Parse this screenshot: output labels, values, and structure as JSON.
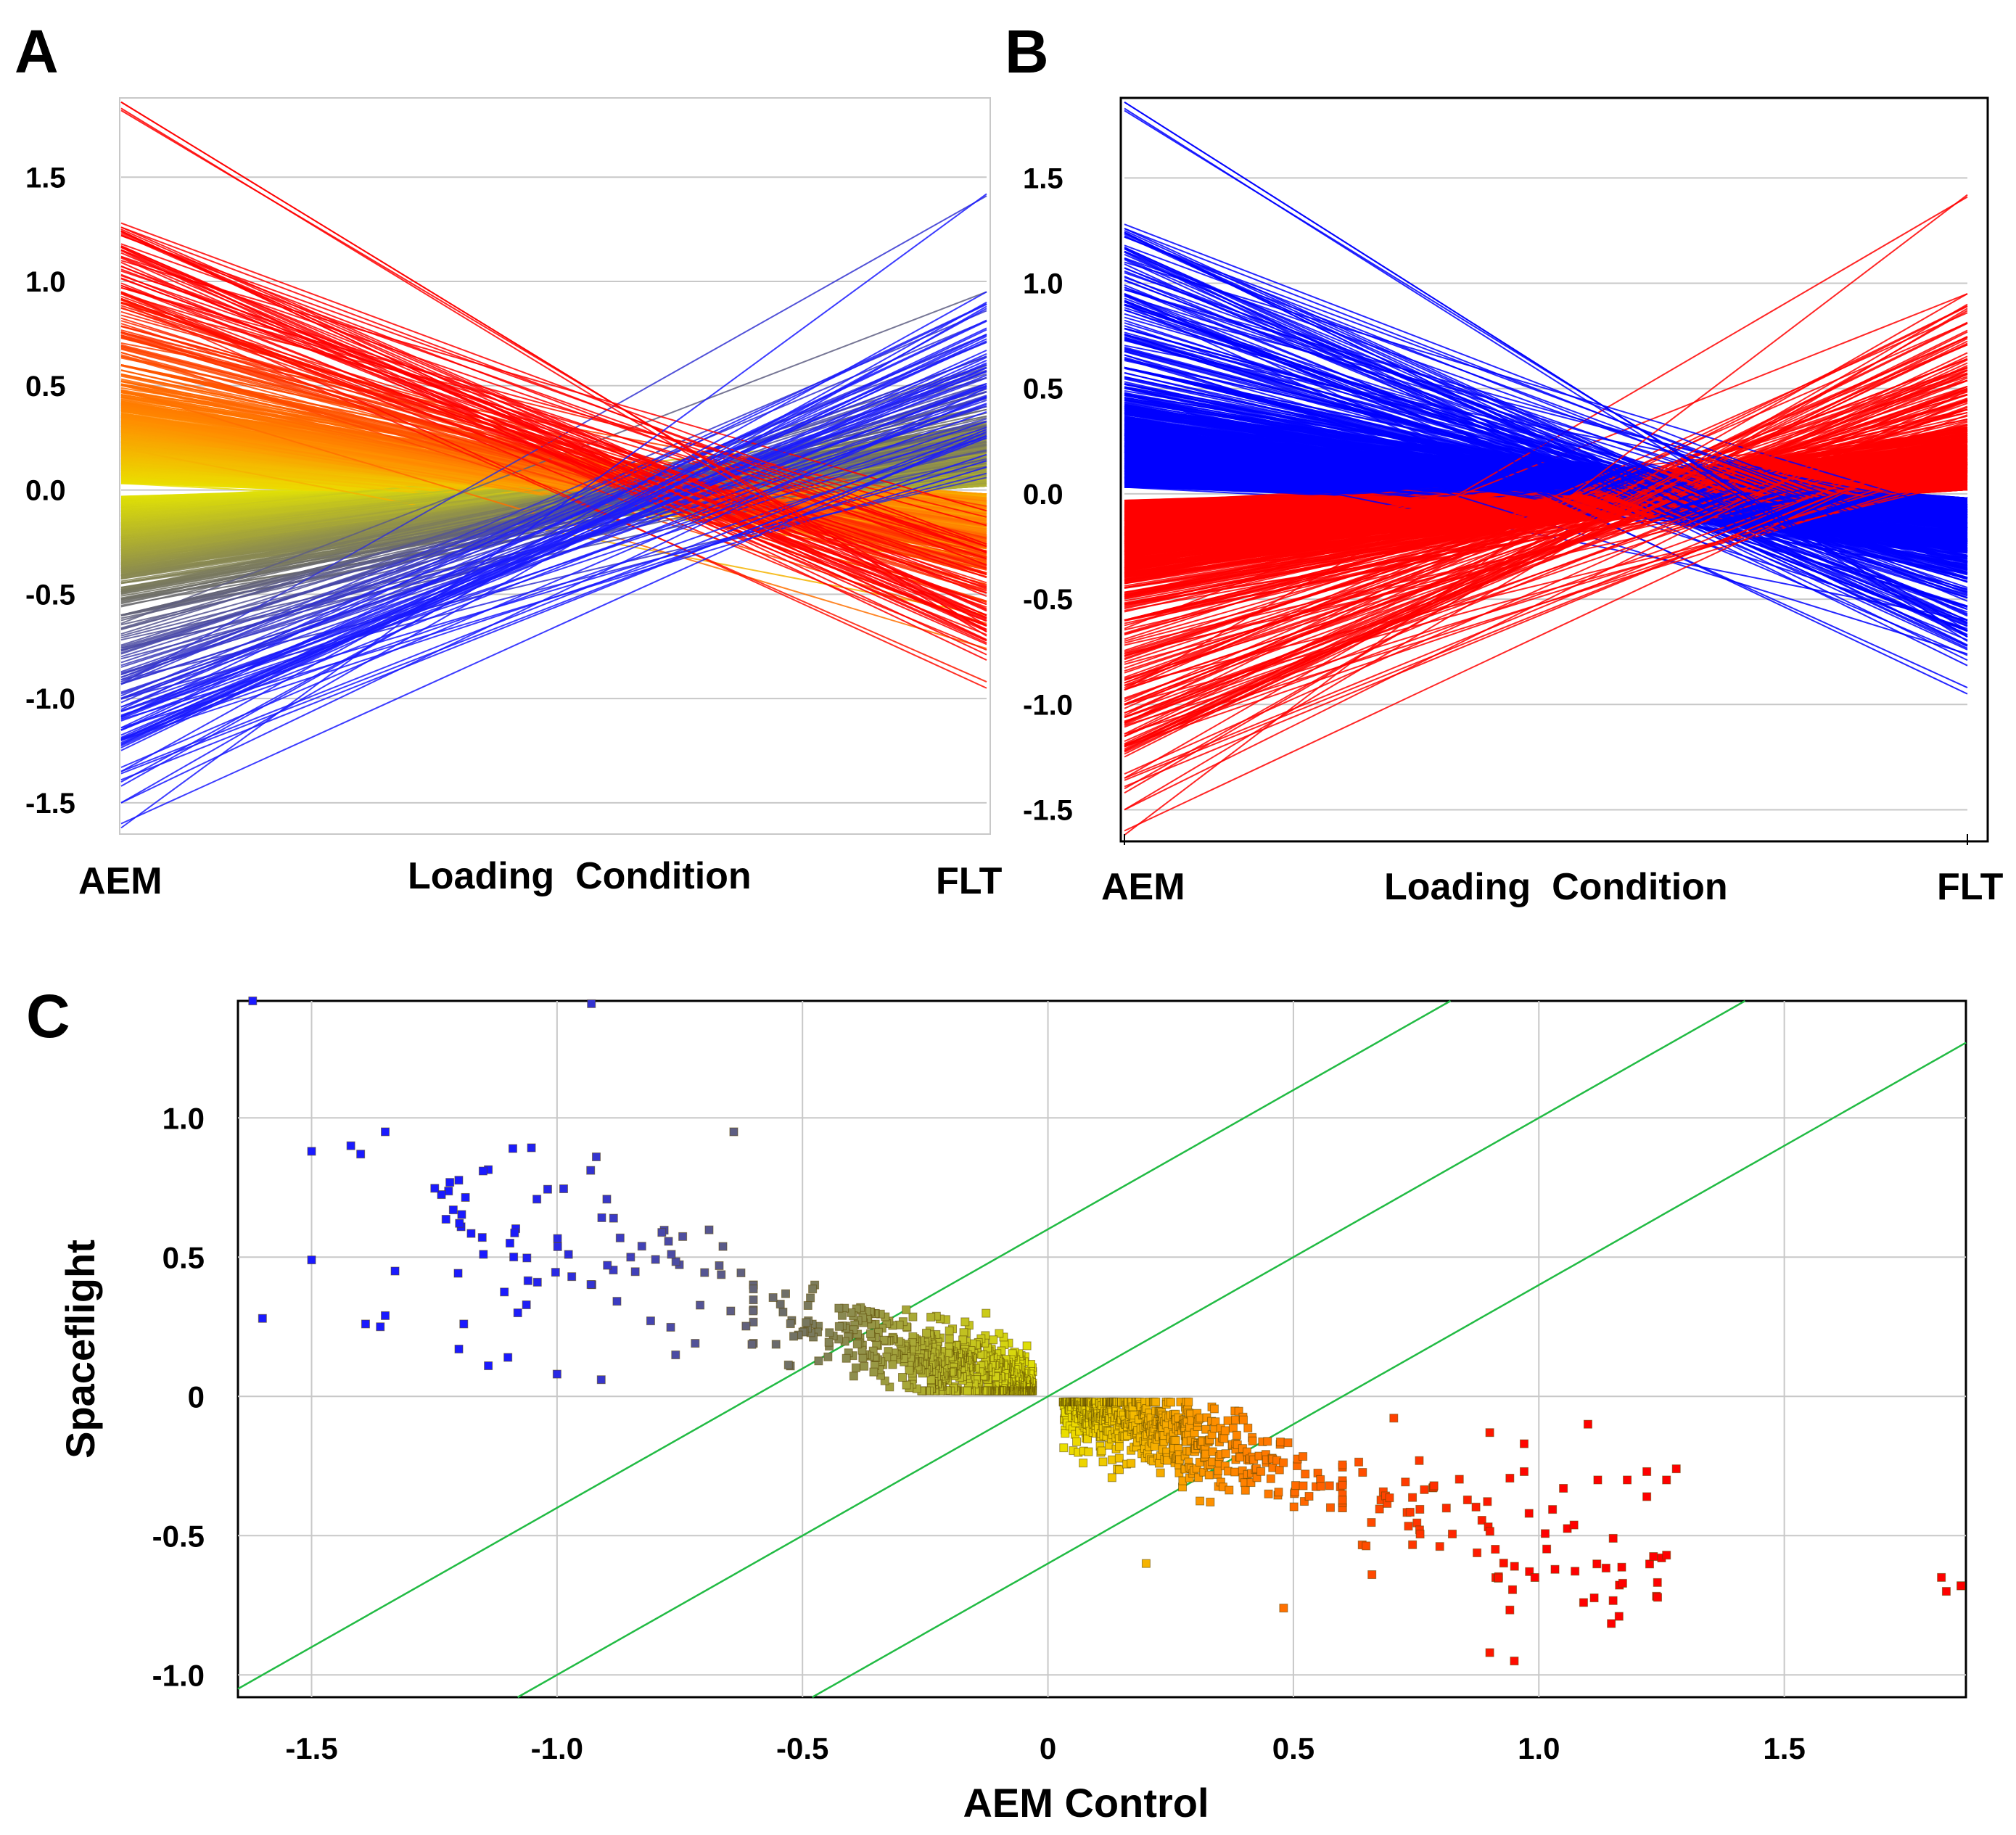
{
  "panels": {
    "a": {
      "letter": "A"
    },
    "b": {
      "letter": "B"
    },
    "c": {
      "letter": "C"
    }
  },
  "colors": {
    "up_strong": "#ff0000",
    "up_mid": "#ff8c00",
    "neutral": "#e8e800",
    "down_mid": "#6b6b6b",
    "down_strong": "#1a1aff",
    "panel_b_up": "#ff0000",
    "panel_b_down": "#0000ff",
    "grid": "#c8c8c8",
    "reference_lines": "#22bb44"
  },
  "chart_data": [
    {
      "id": "A",
      "type": "line",
      "title": "",
      "xlabel": "Loading  Condition",
      "categories": [
        "AEM",
        "FLT"
      ],
      "ylim": [
        -1.65,
        1.88
      ],
      "yticks": [
        -1.5,
        -1.0,
        -0.5,
        0.0,
        0.5,
        1.0,
        1.5
      ],
      "ytick_labels": [
        "-1.5",
        "-1.0",
        "-0.5",
        "0.0",
        "0.5",
        "1.0",
        "1.5"
      ],
      "color_by": "AEM value (red high, orange, yellow, gray, blue low)",
      "series_summary": {
        "count_approx": 1400,
        "aem_range": [
          -1.62,
          1.86
        ],
        "relation": "FLT ≈ -0.55 × AEM (profiles cross near 0 at mid-axis)",
        "notable_profiles": [
          {
            "aem": 1.86,
            "flt": -0.68
          },
          {
            "aem": 1.82,
            "flt": -0.65
          },
          {
            "aem": -1.62,
            "flt": 1.42
          },
          {
            "aem": -1.5,
            "flt": 0.88
          },
          {
            "aem": -1.42,
            "flt": 0.9
          },
          {
            "aem": -1.35,
            "flt": 0.95
          },
          {
            "aem": 1.25,
            "flt": -0.58
          },
          {
            "aem": 1.22,
            "flt": -0.27
          },
          {
            "aem": 0.95,
            "flt": -0.95
          }
        ]
      }
    },
    {
      "id": "B",
      "type": "line",
      "title": "",
      "xlabel": "Loading  Condition",
      "categories": [
        "AEM",
        "FLT"
      ],
      "ylim": [
        -1.65,
        1.88
      ],
      "yticks": [
        -1.5,
        -1.0,
        -0.5,
        0.0,
        0.5,
        1.0,
        1.5
      ],
      "ytick_labels": [
        "-1.5",
        "-1.0",
        "-0.5",
        "0.0",
        "0.5",
        "1.0",
        "1.5"
      ],
      "color_by": "direction of change AEM→FLT (red increase, blue decrease)",
      "series_summary": {
        "count_approx": 1400,
        "blue_decreasing_aem_range": [
          0.0,
          1.86
        ],
        "red_increasing_aem_range": [
          -1.62,
          0.0
        ],
        "relation": "FLT ≈ -0.55 × AEM"
      }
    },
    {
      "id": "C",
      "type": "scatter",
      "title": "",
      "xlabel": "AEM Control",
      "ylabel": "Spaceflight",
      "xlim": [
        -1.65,
        1.87
      ],
      "ylim": [
        -1.08,
        1.42
      ],
      "xticks": [
        -1.5,
        -1.0,
        -0.5,
        0,
        0.5,
        1.0,
        1.5
      ],
      "xtick_labels": [
        "-1.5",
        "-1.0",
        "-0.5",
        "0",
        "0.5",
        "1.0",
        "1.5"
      ],
      "yticks": [
        -1.0,
        -0.5,
        0,
        0.5,
        1.0
      ],
      "ytick_labels": [
        "-1.0",
        "-0.5",
        "0",
        "0.5",
        "1.0"
      ],
      "reference_lines": [
        {
          "slope": 1,
          "intercept": 0.6
        },
        {
          "slope": 1,
          "intercept": 0.0
        },
        {
          "slope": 1,
          "intercept": -0.6
        }
      ],
      "dense_clusters": [
        {
          "x_range": [
            -0.6,
            -0.02
          ],
          "y_range": [
            0.02,
            0.4
          ],
          "count_approx": 650
        },
        {
          "x_range": [
            0.02,
            0.6
          ],
          "y_range": [
            -0.4,
            -0.02
          ],
          "count_approx": 650
        }
      ],
      "outlier_points": [
        {
          "x": -1.6,
          "y": 0.28
        },
        {
          "x": -1.5,
          "y": 0.49
        },
        {
          "x": -1.4,
          "y": 0.87
        },
        {
          "x": -1.39,
          "y": 0.26
        },
        {
          "x": -1.33,
          "y": 0.45
        },
        {
          "x": -1.35,
          "y": 0.29
        },
        {
          "x": -1.36,
          "y": 0.25
        },
        {
          "x": -1.2,
          "y": 0.17
        },
        {
          "x": -1.19,
          "y": 0.26
        },
        {
          "x": -1.15,
          "y": 0.51
        },
        {
          "x": -1.14,
          "y": 0.11
        },
        {
          "x": -1.1,
          "y": 0.14
        },
        {
          "x": -1.09,
          "y": 0.89
        },
        {
          "x": -1.08,
          "y": 0.3
        },
        {
          "x": -1.04,
          "y": 0.41
        },
        {
          "x": -1.0,
          "y": 0.08
        },
        {
          "x": -0.97,
          "y": 0.43
        },
        {
          "x": -0.93,
          "y": 1.41
        },
        {
          "x": -0.92,
          "y": 0.86
        },
        {
          "x": -0.91,
          "y": 0.06
        },
        {
          "x": -0.85,
          "y": 0.5
        },
        {
          "x": -0.64,
          "y": 0.95
        },
        {
          "x": 0.9,
          "y": -0.92
        },
        {
          "x": 0.48,
          "y": -0.76
        },
        {
          "x": 0.2,
          "y": -0.6
        },
        {
          "x": 0.66,
          "y": -0.64
        },
        {
          "x": 0.98,
          "y": -0.42
        },
        {
          "x": 1.1,
          "y": -0.1
        },
        {
          "x": 1.26,
          "y": -0.57
        },
        {
          "x": 1.22,
          "y": -0.36
        },
        {
          "x": 1.28,
          "y": -0.26
        },
        {
          "x": 1.26,
          "y": -0.3
        },
        {
          "x": 1.05,
          "y": -0.33
        },
        {
          "x": 1.12,
          "y": -0.3
        },
        {
          "x": 1.18,
          "y": -0.3
        },
        {
          "x": 0.97,
          "y": -0.27
        },
        {
          "x": 0.97,
          "y": -0.17
        },
        {
          "x": 0.9,
          "y": -0.13
        },
        {
          "x": 1.83,
          "y": -0.7
        },
        {
          "x": 1.86,
          "y": -0.68
        }
      ]
    }
  ]
}
